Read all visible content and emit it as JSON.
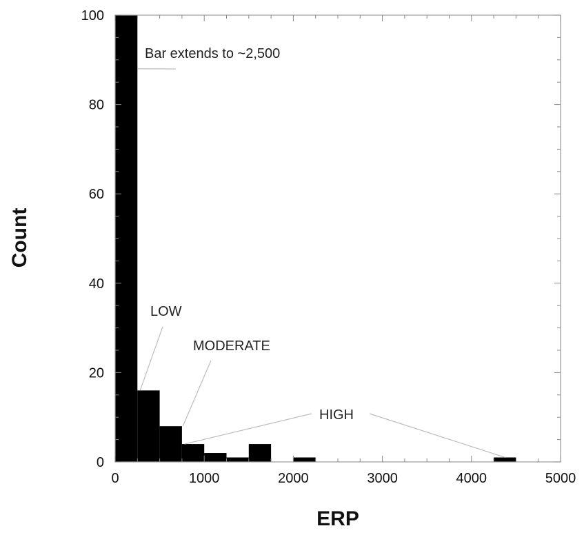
{
  "chart_data": {
    "type": "bar",
    "xlabel": "ERP",
    "ylabel": "Count",
    "xlim": [
      0,
      5000
    ],
    "ylim": [
      0,
      100
    ],
    "x_ticks": [
      "0",
      "1000",
      "2000",
      "3000",
      "4000",
      "5000"
    ],
    "y_ticks": [
      "0",
      "20",
      "40",
      "60",
      "80",
      "100"
    ],
    "bin_width": 250,
    "bins": [
      {
        "start": 0,
        "end": 250,
        "count": 100
      },
      {
        "start": 250,
        "end": 500,
        "count": 16
      },
      {
        "start": 500,
        "end": 750,
        "count": 8
      },
      {
        "start": 750,
        "end": 1000,
        "count": 4
      },
      {
        "start": 1000,
        "end": 1250,
        "count": 2
      },
      {
        "start": 1250,
        "end": 1500,
        "count": 1
      },
      {
        "start": 1500,
        "end": 1750,
        "count": 4
      },
      {
        "start": 2000,
        "end": 2250,
        "count": 1
      },
      {
        "start": 4250,
        "end": 4500,
        "count": 1
      }
    ],
    "bar_color": "#000000",
    "grid": false,
    "annotations": [
      {
        "text": "Bar extends to ~2,500",
        "points_to": {
          "x": 250,
          "y": 88
        }
      },
      {
        "text": "LOW",
        "points_to": {
          "x": 280,
          "y": 16
        }
      },
      {
        "text": "MODERATE",
        "points_to": {
          "x": 760,
          "y": 8
        }
      },
      {
        "text": "HIGH",
        "points_to": [
          {
            "x": 780,
            "y": 4
          },
          {
            "x": 4380,
            "y": 1
          }
        ]
      }
    ]
  }
}
